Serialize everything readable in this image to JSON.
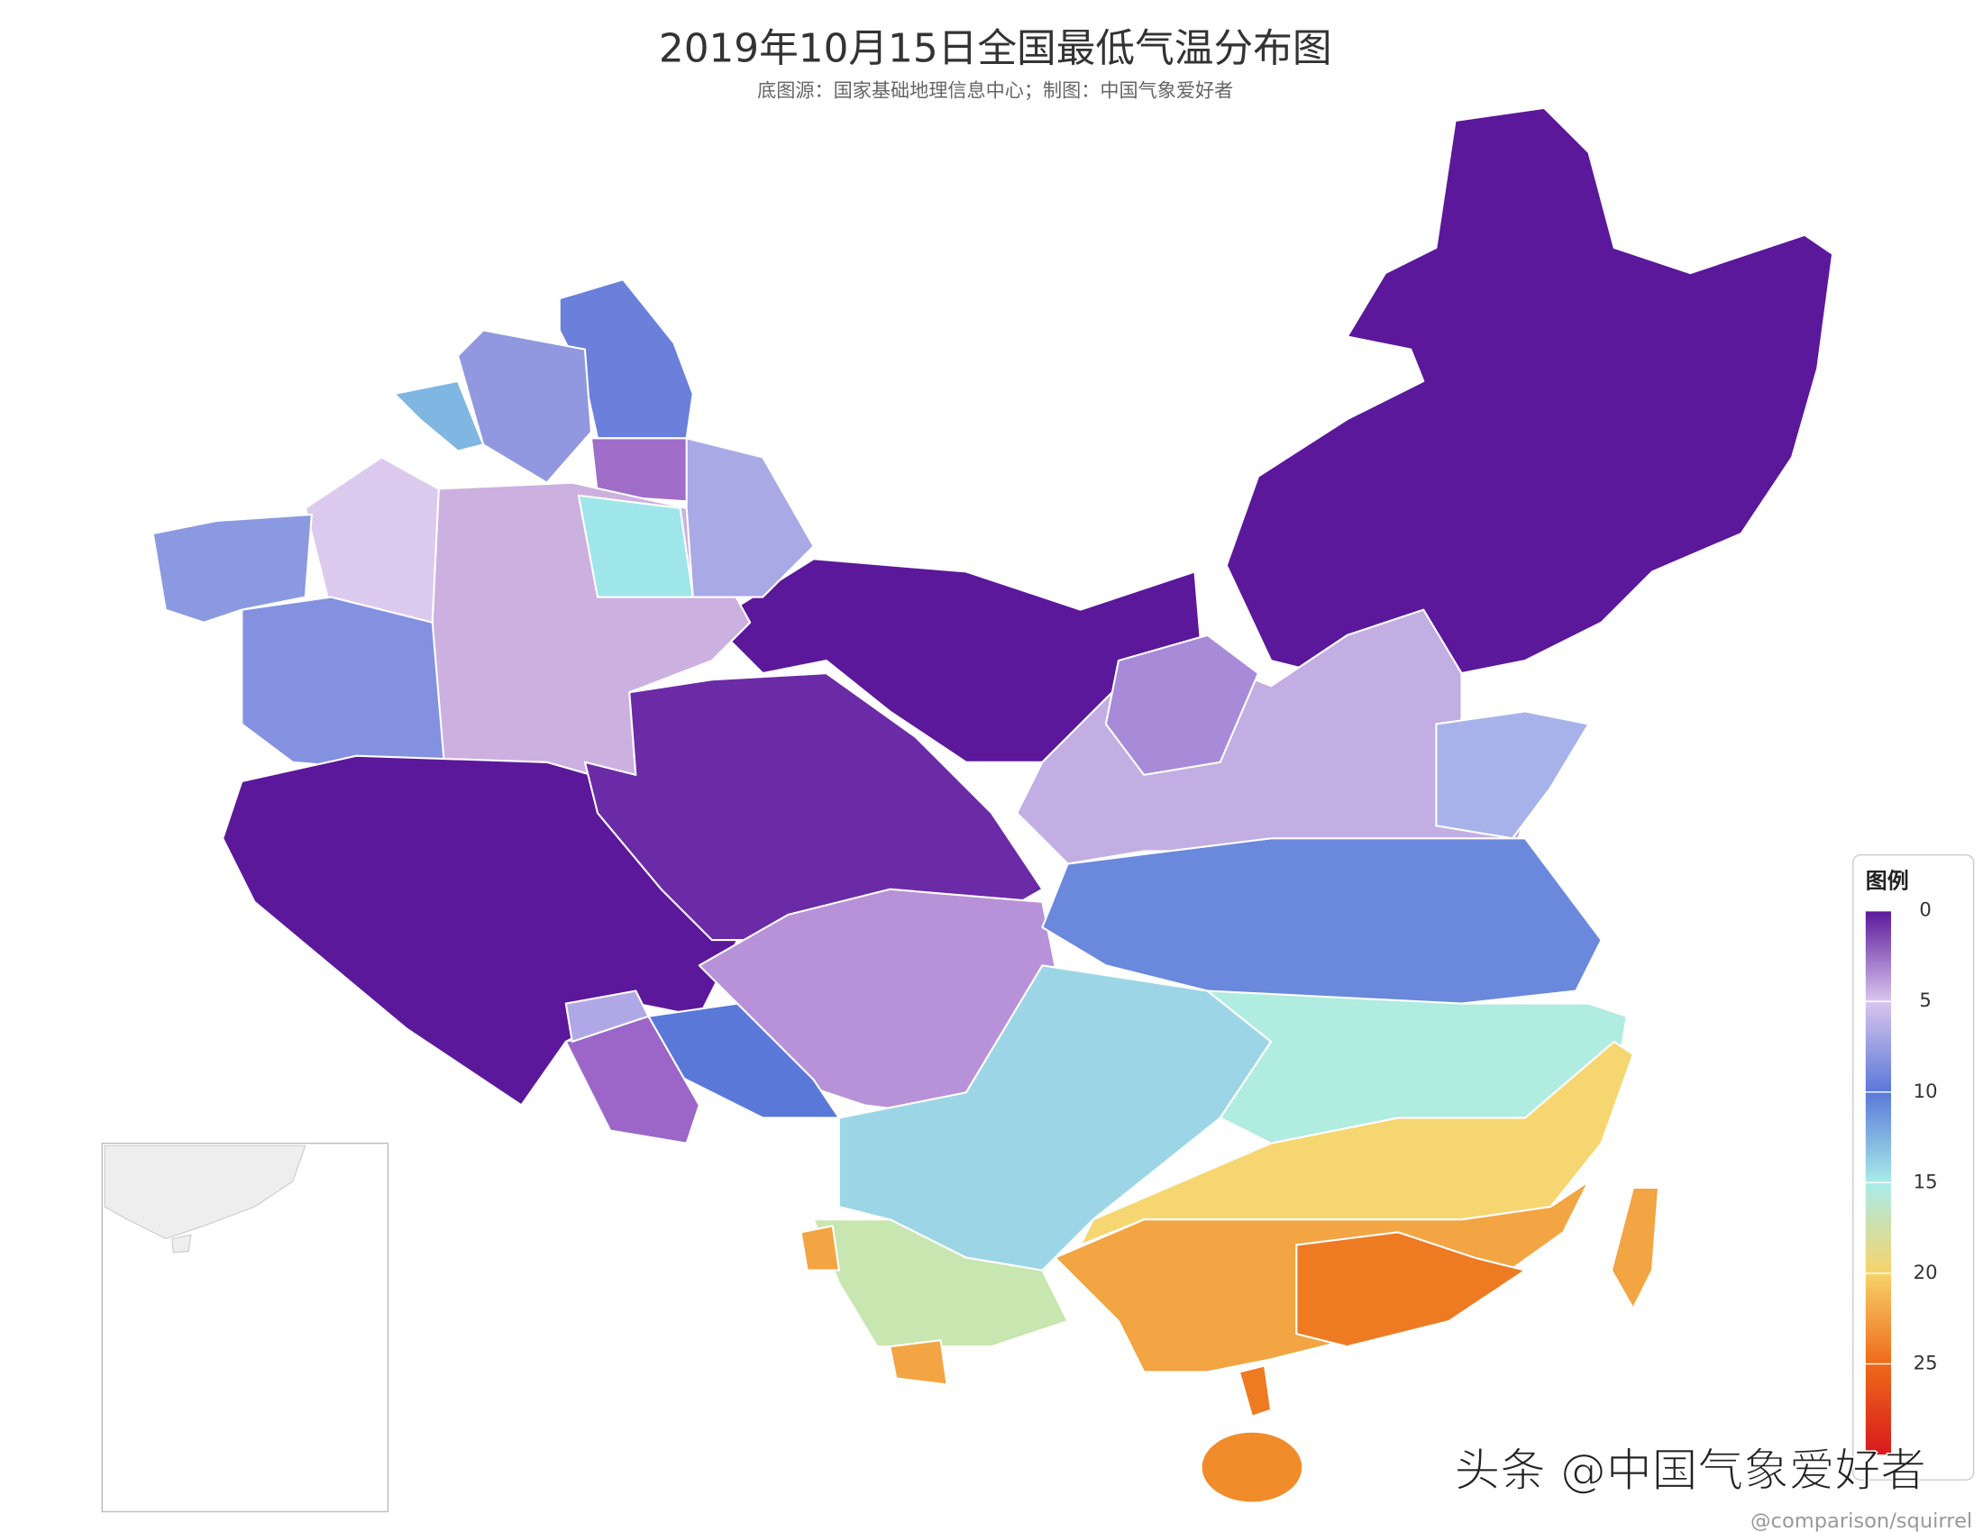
{
  "header": {
    "title": "2019年10月15日全国最低气温分布图",
    "subtitle": "底图源：国家基础地理信息中心；制图：中国气象爱好者"
  },
  "legend": {
    "title": "图例",
    "ticks": [
      0,
      5,
      10,
      15,
      20,
      25
    ],
    "lim": [
      0,
      30
    ],
    "colors": [
      "#5b189a",
      "#d9c6ee",
      "#5a78d8",
      "#a8ecea",
      "#f7d36a",
      "#ef6a1a",
      "#d7191c"
    ]
  },
  "watermark": {
    "text": "头条 @中国气象爱好者",
    "credit": "@comparison/squirrel"
  }
}
